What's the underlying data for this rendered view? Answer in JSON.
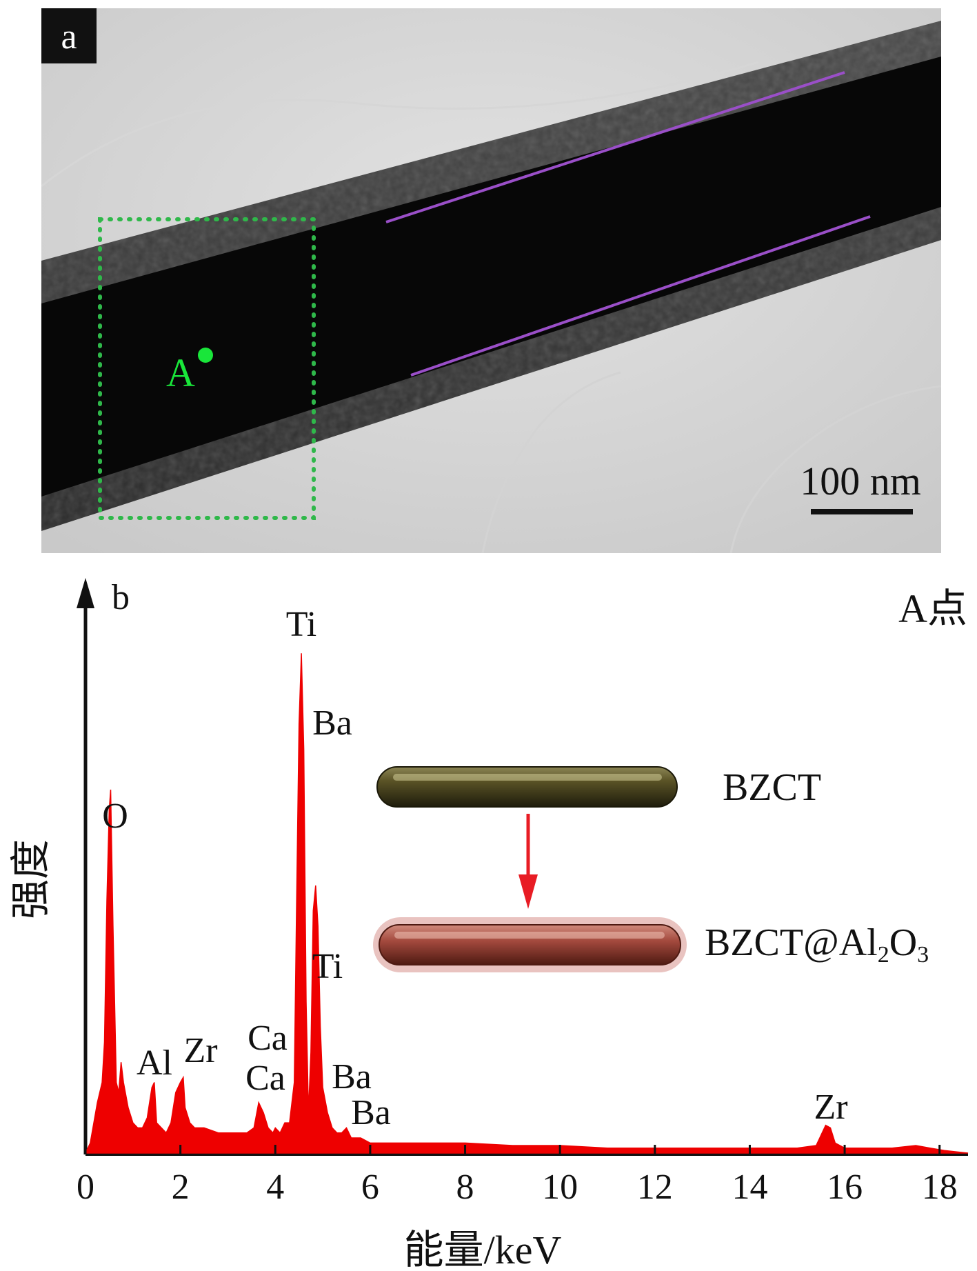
{
  "panel_a": {
    "label": "a",
    "point_label": "A",
    "scale_bar_text": "100 nm",
    "colors": {
      "highlight_box": "#2fb84a",
      "point": "#19e63a",
      "shell_lines": "#9a4fc8"
    }
  },
  "panel_b": {
    "label": "b",
    "corner_label": "A点",
    "peak_labels": [
      {
        "text": "O"
      },
      {
        "text": "Al"
      },
      {
        "text": "Zr"
      },
      {
        "text": "Ca"
      },
      {
        "text": "Ca"
      },
      {
        "text": "Ti"
      },
      {
        "text": "Ba"
      },
      {
        "text": "Ti"
      },
      {
        "text": "Ba"
      },
      {
        "text": "Ba"
      },
      {
        "text": "Zr"
      }
    ],
    "schematic": {
      "top_label": "BZCT",
      "bottom_label_main": "BZCT@Al",
      "bottom_sub1": "2",
      "bottom_mid": "O",
      "bottom_sub2": "3",
      "colors": {
        "core": "#5a5326",
        "coated": "#a44a3e",
        "arrow": "#e81c24"
      }
    }
  },
  "chart_data": {
    "type": "area",
    "xlabel": "能量/keV",
    "ylabel": "强度",
    "xlim": [
      0,
      18.6
    ],
    "ylim": [
      0,
      100
    ],
    "x_ticks": [
      "0",
      "2",
      "4",
      "6",
      "8",
      "10",
      "12",
      "14",
      "16",
      "18"
    ],
    "y_ticks_visible": false,
    "series": [
      {
        "color": "#ee0000",
        "x": [
          0,
          0.1,
          0.25,
          0.35,
          0.4,
          0.45,
          0.5,
          0.53,
          0.58,
          0.65,
          0.7,
          0.75,
          0.8,
          0.9,
          1.0,
          1.1,
          1.2,
          1.3,
          1.4,
          1.45,
          1.5,
          1.6,
          1.7,
          1.8,
          1.9,
          2.0,
          2.06,
          2.1,
          2.2,
          2.3,
          2.5,
          2.8,
          3.0,
          3.2,
          3.4,
          3.55,
          3.65,
          3.75,
          3.85,
          3.95,
          4.0,
          4.1,
          4.2,
          4.3,
          4.4,
          4.45,
          4.5,
          4.55,
          4.6,
          4.65,
          4.7,
          4.75,
          4.8,
          4.85,
          4.9,
          4.95,
          5.0,
          5.1,
          5.2,
          5.3,
          5.4,
          5.5,
          5.6,
          5.8,
          6.0,
          6.3,
          6.6,
          7.0,
          7.5,
          8.0,
          9.0,
          10.0,
          11.0,
          12.0,
          13.0,
          14.0,
          15.0,
          15.4,
          15.6,
          15.7,
          15.8,
          16.0,
          16.5,
          17.0,
          17.5,
          17.8,
          18.1,
          18.6
        ],
        "y": [
          0,
          2,
          10,
          14,
          22,
          50,
          68,
          72,
          45,
          14,
          12,
          18,
          14,
          9,
          6,
          5,
          5,
          7,
          13,
          14,
          6,
          5,
          4,
          6,
          12,
          14,
          15,
          9,
          6,
          5,
          5,
          4,
          4,
          4,
          4,
          5,
          10,
          8,
          5,
          4,
          5,
          4,
          6,
          6,
          14,
          50,
          85,
          99,
          80,
          30,
          8,
          20,
          48,
          53,
          45,
          25,
          13,
          8,
          5,
          4,
          4,
          5,
          3,
          3,
          2,
          2,
          2,
          2,
          2,
          2,
          1.5,
          1.5,
          1,
          1,
          1,
          1,
          1,
          1.5,
          5.5,
          5,
          2,
          1,
          1,
          1,
          1.5,
          1,
          0.5,
          0
        ]
      }
    ]
  }
}
